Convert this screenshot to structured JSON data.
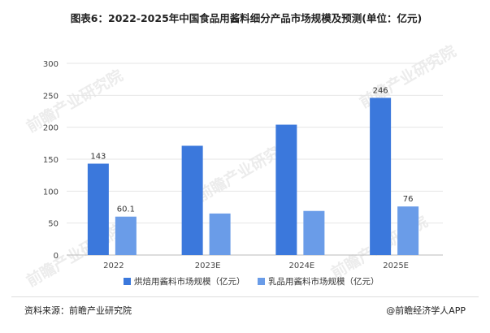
{
  "title": "图表6：2022-2025年中国食品用酱料细分产品市场规模及预测(单位：亿元)",
  "watermark_text": "前瞻产业研究院",
  "chart_data": {
    "type": "bar",
    "categories": [
      "2022",
      "2023E",
      "2024E",
      "2025E"
    ],
    "series": [
      {
        "name": "烘焙用酱料市场规模（亿元）",
        "values": [
          143,
          171,
          204,
          246
        ],
        "color": "#3b78dc",
        "labels": [
          "143",
          "",
          "",
          "246"
        ]
      },
      {
        "name": "乳品用酱料市场规模（亿元）",
        "values": [
          60.1,
          65,
          69,
          76
        ],
        "color": "#6a9ce8",
        "labels": [
          "60.1",
          "",
          "",
          "76"
        ]
      }
    ],
    "ylim": [
      0,
      300
    ],
    "yticks": [
      0,
      50,
      100,
      150,
      200,
      250,
      300
    ],
    "grid": true,
    "legend": "bottom"
  },
  "footer": {
    "source": "资料来源：前瞻产业研究院",
    "credit": "@前瞻经济学人APP"
  }
}
